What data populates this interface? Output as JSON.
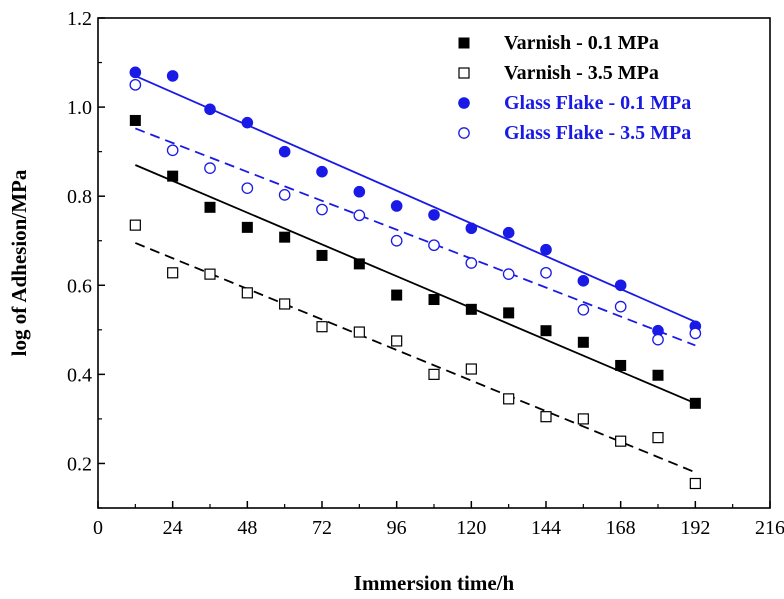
{
  "chart_data": {
    "type": "scatter",
    "title": "",
    "xlabel": "Immersion time/h",
    "ylabel": "log of Adhesion/MPa",
    "xlim": [
      0,
      216
    ],
    "ylim": [
      0.1,
      1.2
    ],
    "xticks": [
      0,
      24,
      48,
      72,
      96,
      120,
      144,
      168,
      192,
      216
    ],
    "yticks": [
      0.2,
      0.4,
      0.6,
      0.8,
      1.0,
      1.2
    ],
    "grid": false,
    "legend_position": "top-right",
    "x": [
      12,
      24,
      36,
      48,
      60,
      72,
      84,
      96,
      108,
      120,
      132,
      144,
      156,
      168,
      180,
      192
    ],
    "series": [
      {
        "name": "Varnish - 0.1 MPa",
        "color": "#000000",
        "marker": "square-filled",
        "values": [
          0.97,
          0.845,
          0.775,
          0.73,
          0.708,
          0.667,
          0.648,
          0.578,
          0.568,
          0.546,
          0.538,
          0.498,
          0.472,
          0.42,
          0.398,
          0.335
        ],
        "fit": {
          "style": "solid",
          "start": [
            12,
            0.87
          ],
          "end": [
            192,
            0.335
          ]
        }
      },
      {
        "name": "Varnish - 3.5 MPa",
        "color": "#000000",
        "marker": "square-open",
        "values": [
          0.735,
          0.628,
          0.625,
          0.583,
          0.558,
          0.507,
          0.495,
          0.475,
          0.4,
          0.412,
          0.345,
          0.305,
          0.3,
          0.25,
          0.258,
          0.155
        ],
        "fit": {
          "style": "dashed",
          "start": [
            12,
            0.695
          ],
          "end": [
            192,
            0.18
          ]
        }
      },
      {
        "name": "Glass Flake - 0.1 MPa",
        "color": "#1a1ae6",
        "marker": "circle-filled",
        "values": [
          1.078,
          1.07,
          0.995,
          0.965,
          0.9,
          0.855,
          0.81,
          0.778,
          0.758,
          0.728,
          0.718,
          0.68,
          0.61,
          0.6,
          0.498,
          0.508
        ],
        "fit": {
          "style": "solid",
          "start": [
            12,
            1.07
          ],
          "end": [
            192,
            0.518
          ]
        }
      },
      {
        "name": "Glass Flake - 3.5 MPa",
        "color": "#1a1ae6",
        "marker": "circle-open",
        "values": [
          1.05,
          0.903,
          0.863,
          0.818,
          0.803,
          0.77,
          0.757,
          0.7,
          0.69,
          0.65,
          0.625,
          0.628,
          0.545,
          0.552,
          0.478,
          0.492
        ],
        "fit": {
          "style": "dashed",
          "start": [
            12,
            0.952
          ],
          "end": [
            192,
            0.465
          ]
        }
      }
    ]
  }
}
